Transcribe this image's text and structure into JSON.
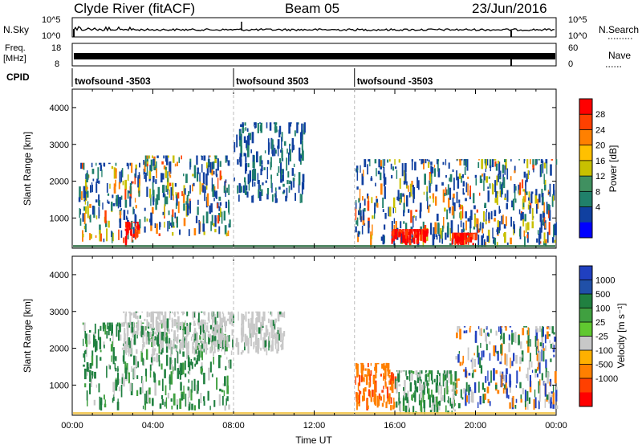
{
  "header": {
    "station": "Clyde River (fitACF)",
    "beam": "Beam 05",
    "date": "23/Jun/2016"
  },
  "top_panels": {
    "nsky_label": "N.Sky",
    "nsky_ticks": [
      "10^5",
      "10^0"
    ],
    "nsearch_label": "N.Search",
    "nsearch_ticks": [
      "10^5",
      "10^0"
    ],
    "freq_label": "Freq.",
    "freq_unit": "[MHz]",
    "freq_ticks": [
      "18",
      "8"
    ],
    "nave_label": "Nave",
    "nave_ticks": [
      "60",
      "0"
    ],
    "cpid_label": "CPID",
    "cpid_segments": [
      {
        "label": "twofsound -3503",
        "start_hour": 0,
        "end_hour": 8
      },
      {
        "label": "twofsound 3503",
        "start_hour": 8,
        "end_hour": 14
      },
      {
        "label": "twofsound -3503",
        "start_hour": 14,
        "end_hour": 24
      }
    ]
  },
  "chart_data": [
    {
      "type": "heatmap",
      "name": "power",
      "ylabel": "Slant Range [km]",
      "xlabel": "",
      "x_range_hours": [
        0,
        24
      ],
      "ylim": [
        180,
        4500
      ],
      "yticks": [
        1000,
        2000,
        3000,
        4000
      ],
      "colorbar": {
        "label": "Power [dB]",
        "ticks": [
          "28",
          "24",
          "20",
          "16",
          "12",
          "8",
          "4"
        ],
        "colors": [
          "#ff0000",
          "#ff4000",
          "#ff8000",
          "#ffc000",
          "#c8c000",
          "#409060",
          "#20806a",
          "#1040a0",
          "#0000ff"
        ]
      },
      "ground_scatter_color": "#808080",
      "series": [
        {
          "hour_start": 0.3,
          "hour_end": 3.4,
          "range_min": 300,
          "range_max": 2500,
          "level": "moderate"
        },
        {
          "hour_start": 2.6,
          "hour_end": 3.3,
          "range_min": 200,
          "range_max": 900,
          "level": "high"
        },
        {
          "hour_start": 3.5,
          "hour_end": 7.8,
          "range_min": 500,
          "range_max": 2700,
          "level": "moderate"
        },
        {
          "hour_start": 8.0,
          "hour_end": 11.5,
          "range_min": 1400,
          "range_max": 3600,
          "level": "low"
        },
        {
          "hour_start": 14.0,
          "hour_end": 24.0,
          "range_min": 200,
          "range_max": 2600,
          "level": "moderate"
        },
        {
          "hour_start": 15.8,
          "hour_end": 17.6,
          "range_min": 250,
          "range_max": 700,
          "level": "high"
        },
        {
          "hour_start": 18.8,
          "hour_end": 20.0,
          "range_min": 250,
          "range_max": 600,
          "level": "high"
        }
      ]
    },
    {
      "type": "heatmap",
      "name": "velocity",
      "ylabel": "Slant Range [km]",
      "xlabel": "Time UT",
      "x_range_hours": [
        0,
        24
      ],
      "xticks": [
        "00:00",
        "04:00",
        "08:00",
        "12:00",
        "16:00",
        "20:00",
        "00:00"
      ],
      "ylim": [
        180,
        4500
      ],
      "yticks": [
        1000,
        2000,
        3000,
        4000
      ],
      "colorbar": {
        "label": "Velocity [m s⁻¹]",
        "ticks": [
          "1000",
          "500",
          "100",
          "25",
          "-25",
          "-100",
          "-500",
          "-1000"
        ],
        "colors": [
          "#2040c0",
          "#2050a8",
          "#208040",
          "#40a040",
          "#60c830",
          "#c8c8c8",
          "#ffb000",
          "#ff8000",
          "#ff4000",
          "#ff0000"
        ]
      },
      "series": [
        {
          "hour_start": 0.5,
          "hour_end": 7.8,
          "range_min": 300,
          "range_max": 2700,
          "level": "green"
        },
        {
          "hour_start": 2.5,
          "hour_end": 10.5,
          "range_min": 1800,
          "range_max": 3000,
          "level": "gray"
        },
        {
          "hour_start": 14.0,
          "hour_end": 16.0,
          "range_min": 300,
          "range_max": 1600,
          "level": "orange"
        },
        {
          "hour_start": 16.0,
          "hour_end": 19.0,
          "range_min": 200,
          "range_max": 1400,
          "level": "green"
        },
        {
          "hour_start": 19.0,
          "hour_end": 24.0,
          "range_min": 300,
          "range_max": 2600,
          "level": "mixed"
        }
      ]
    }
  ]
}
